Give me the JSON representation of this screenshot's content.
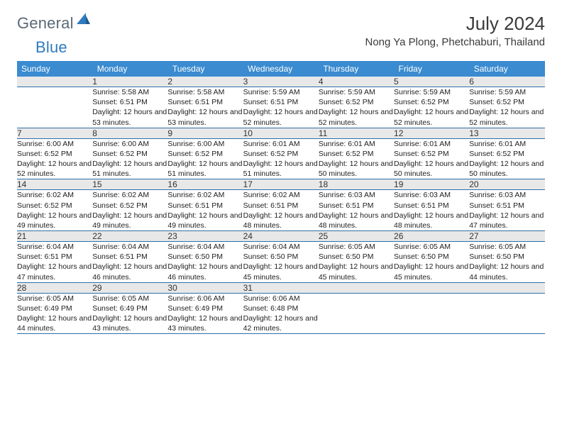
{
  "logo": {
    "part1": "General",
    "part2": "Blue"
  },
  "title": "July 2024",
  "location": "Nong Ya Plong, Phetchaburi, Thailand",
  "colors": {
    "header_bg": "#3a8bd0",
    "header_text": "#ffffff",
    "daynum_bg": "#e8e8e8",
    "rule": "#2f6fa8",
    "logo_gray": "#5a6a78",
    "logo_blue": "#2f7bbf"
  },
  "weekdays": [
    "Sunday",
    "Monday",
    "Tuesday",
    "Wednesday",
    "Thursday",
    "Friday",
    "Saturday"
  ],
  "weeks": [
    [
      null,
      {
        "n": "1",
        "sr": "Sunrise: 5:58 AM",
        "ss": "Sunset: 6:51 PM",
        "dl": "Daylight: 12 hours and 53 minutes."
      },
      {
        "n": "2",
        "sr": "Sunrise: 5:58 AM",
        "ss": "Sunset: 6:51 PM",
        "dl": "Daylight: 12 hours and 53 minutes."
      },
      {
        "n": "3",
        "sr": "Sunrise: 5:59 AM",
        "ss": "Sunset: 6:51 PM",
        "dl": "Daylight: 12 hours and 52 minutes."
      },
      {
        "n": "4",
        "sr": "Sunrise: 5:59 AM",
        "ss": "Sunset: 6:52 PM",
        "dl": "Daylight: 12 hours and 52 minutes."
      },
      {
        "n": "5",
        "sr": "Sunrise: 5:59 AM",
        "ss": "Sunset: 6:52 PM",
        "dl": "Daylight: 12 hours and 52 minutes."
      },
      {
        "n": "6",
        "sr": "Sunrise: 5:59 AM",
        "ss": "Sunset: 6:52 PM",
        "dl": "Daylight: 12 hours and 52 minutes."
      }
    ],
    [
      {
        "n": "7",
        "sr": "Sunrise: 6:00 AM",
        "ss": "Sunset: 6:52 PM",
        "dl": "Daylight: 12 hours and 52 minutes."
      },
      {
        "n": "8",
        "sr": "Sunrise: 6:00 AM",
        "ss": "Sunset: 6:52 PM",
        "dl": "Daylight: 12 hours and 51 minutes."
      },
      {
        "n": "9",
        "sr": "Sunrise: 6:00 AM",
        "ss": "Sunset: 6:52 PM",
        "dl": "Daylight: 12 hours and 51 minutes."
      },
      {
        "n": "10",
        "sr": "Sunrise: 6:01 AM",
        "ss": "Sunset: 6:52 PM",
        "dl": "Daylight: 12 hours and 51 minutes."
      },
      {
        "n": "11",
        "sr": "Sunrise: 6:01 AM",
        "ss": "Sunset: 6:52 PM",
        "dl": "Daylight: 12 hours and 50 minutes."
      },
      {
        "n": "12",
        "sr": "Sunrise: 6:01 AM",
        "ss": "Sunset: 6:52 PM",
        "dl": "Daylight: 12 hours and 50 minutes."
      },
      {
        "n": "13",
        "sr": "Sunrise: 6:01 AM",
        "ss": "Sunset: 6:52 PM",
        "dl": "Daylight: 12 hours and 50 minutes."
      }
    ],
    [
      {
        "n": "14",
        "sr": "Sunrise: 6:02 AM",
        "ss": "Sunset: 6:52 PM",
        "dl": "Daylight: 12 hours and 49 minutes."
      },
      {
        "n": "15",
        "sr": "Sunrise: 6:02 AM",
        "ss": "Sunset: 6:52 PM",
        "dl": "Daylight: 12 hours and 49 minutes."
      },
      {
        "n": "16",
        "sr": "Sunrise: 6:02 AM",
        "ss": "Sunset: 6:51 PM",
        "dl": "Daylight: 12 hours and 49 minutes."
      },
      {
        "n": "17",
        "sr": "Sunrise: 6:02 AM",
        "ss": "Sunset: 6:51 PM",
        "dl": "Daylight: 12 hours and 48 minutes."
      },
      {
        "n": "18",
        "sr": "Sunrise: 6:03 AM",
        "ss": "Sunset: 6:51 PM",
        "dl": "Daylight: 12 hours and 48 minutes."
      },
      {
        "n": "19",
        "sr": "Sunrise: 6:03 AM",
        "ss": "Sunset: 6:51 PM",
        "dl": "Daylight: 12 hours and 48 minutes."
      },
      {
        "n": "20",
        "sr": "Sunrise: 6:03 AM",
        "ss": "Sunset: 6:51 PM",
        "dl": "Daylight: 12 hours and 47 minutes."
      }
    ],
    [
      {
        "n": "21",
        "sr": "Sunrise: 6:04 AM",
        "ss": "Sunset: 6:51 PM",
        "dl": "Daylight: 12 hours and 47 minutes."
      },
      {
        "n": "22",
        "sr": "Sunrise: 6:04 AM",
        "ss": "Sunset: 6:51 PM",
        "dl": "Daylight: 12 hours and 46 minutes."
      },
      {
        "n": "23",
        "sr": "Sunrise: 6:04 AM",
        "ss": "Sunset: 6:50 PM",
        "dl": "Daylight: 12 hours and 46 minutes."
      },
      {
        "n": "24",
        "sr": "Sunrise: 6:04 AM",
        "ss": "Sunset: 6:50 PM",
        "dl": "Daylight: 12 hours and 45 minutes."
      },
      {
        "n": "25",
        "sr": "Sunrise: 6:05 AM",
        "ss": "Sunset: 6:50 PM",
        "dl": "Daylight: 12 hours and 45 minutes."
      },
      {
        "n": "26",
        "sr": "Sunrise: 6:05 AM",
        "ss": "Sunset: 6:50 PM",
        "dl": "Daylight: 12 hours and 45 minutes."
      },
      {
        "n": "27",
        "sr": "Sunrise: 6:05 AM",
        "ss": "Sunset: 6:50 PM",
        "dl": "Daylight: 12 hours and 44 minutes."
      }
    ],
    [
      {
        "n": "28",
        "sr": "Sunrise: 6:05 AM",
        "ss": "Sunset: 6:49 PM",
        "dl": "Daylight: 12 hours and 44 minutes."
      },
      {
        "n": "29",
        "sr": "Sunrise: 6:05 AM",
        "ss": "Sunset: 6:49 PM",
        "dl": "Daylight: 12 hours and 43 minutes."
      },
      {
        "n": "30",
        "sr": "Sunrise: 6:06 AM",
        "ss": "Sunset: 6:49 PM",
        "dl": "Daylight: 12 hours and 43 minutes."
      },
      {
        "n": "31",
        "sr": "Sunrise: 6:06 AM",
        "ss": "Sunset: 6:48 PM",
        "dl": "Daylight: 12 hours and 42 minutes."
      },
      null,
      null,
      null
    ]
  ]
}
